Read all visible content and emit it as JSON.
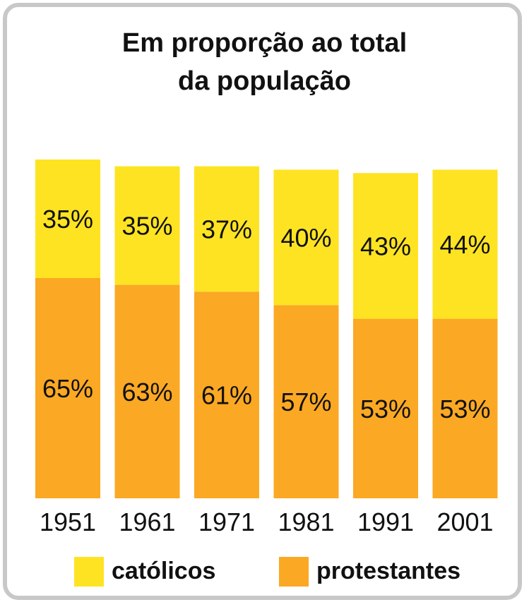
{
  "chart_data": {
    "type": "bar",
    "stacked": true,
    "title": "Em proporção ao total",
    "subtitle": "da população",
    "categories": [
      "1951",
      "1961",
      "1971",
      "1981",
      "1991",
      "2001"
    ],
    "series": [
      {
        "name": "protestantes",
        "color": "#fba824",
        "values": [
          65,
          63,
          61,
          57,
          53,
          53
        ],
        "labels": [
          "65%",
          "63%",
          "61%",
          "57%",
          "53%",
          "53%"
        ]
      },
      {
        "name": "católicos",
        "color": "#fee323",
        "values": [
          35,
          35,
          37,
          40,
          43,
          44
        ],
        "labels": [
          "35%",
          "35%",
          "37%",
          "40%",
          "43%",
          "44%"
        ]
      }
    ],
    "legend_position": "bottom",
    "grid": false,
    "y_axis_shown": false
  },
  "colors": {
    "frame": "#c8c8c8",
    "catolicos": "#fee323",
    "protestantes": "#fba824"
  }
}
